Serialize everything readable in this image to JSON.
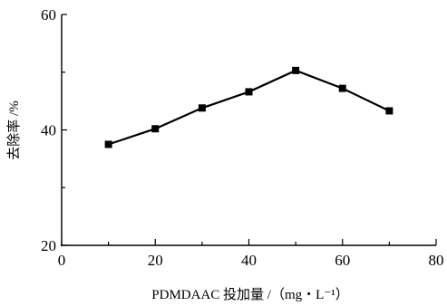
{
  "chart_data": {
    "type": "line",
    "xlabel": "PDMDAAC 投加量 /（mg・L⁻¹）",
    "ylabel": "去除率 /%",
    "xlim": [
      0,
      80
    ],
    "ylim": [
      20,
      60
    ],
    "x_ticks": [
      0,
      20,
      40,
      60,
      80
    ],
    "y_ticks": [
      20,
      40,
      60
    ],
    "x_tick_labels": [
      "0",
      "20",
      "40",
      "60",
      "80"
    ],
    "y_tick_labels": [
      "20",
      "40",
      "60"
    ],
    "grid": false,
    "marker": "square",
    "series": [
      {
        "x": [
          10,
          20,
          30,
          40,
          50,
          60,
          70
        ],
        "values": [
          37.5,
          40.2,
          43.8,
          46.6,
          50.3,
          47.2,
          43.3
        ]
      }
    ]
  }
}
